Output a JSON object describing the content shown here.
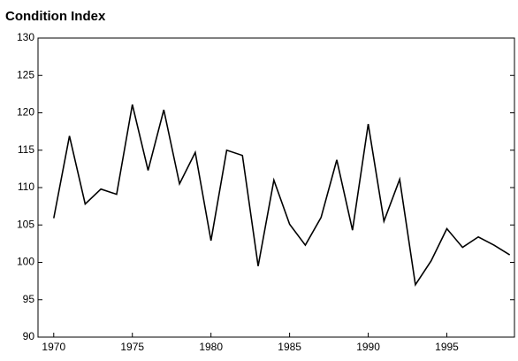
{
  "chart_data": {
    "type": "line",
    "title": "Condition Index",
    "x": [
      1970,
      1971,
      1972,
      1973,
      1974,
      1975,
      1976,
      1977,
      1978,
      1979,
      1980,
      1981,
      1982,
      1983,
      1984,
      1985,
      1986,
      1987,
      1988,
      1989,
      1990,
      1991,
      1992,
      1993,
      1994,
      1995,
      1996,
      1997,
      1998,
      1999
    ],
    "values": [
      105.9,
      116.9,
      107.8,
      109.8,
      109.1,
      121.1,
      112.3,
      120.4,
      110.5,
      114.7,
      102.9,
      115.0,
      114.3,
      99.5,
      111.0,
      105.1,
      102.3,
      106.0,
      113.7,
      104.3,
      118.5,
      105.5,
      111.1,
      97.0,
      100.2,
      104.5,
      102.0,
      103.4,
      102.3,
      101.0
    ],
    "color": "#000000",
    "xlim": [
      1969,
      1999.3
    ],
    "xticks": [
      1970,
      1975,
      1980,
      1985,
      1990,
      1995
    ],
    "ylim": [
      90,
      130
    ],
    "yticks": [
      90,
      95,
      100,
      105,
      110,
      115,
      120,
      125,
      130
    ],
    "grid": false
  }
}
